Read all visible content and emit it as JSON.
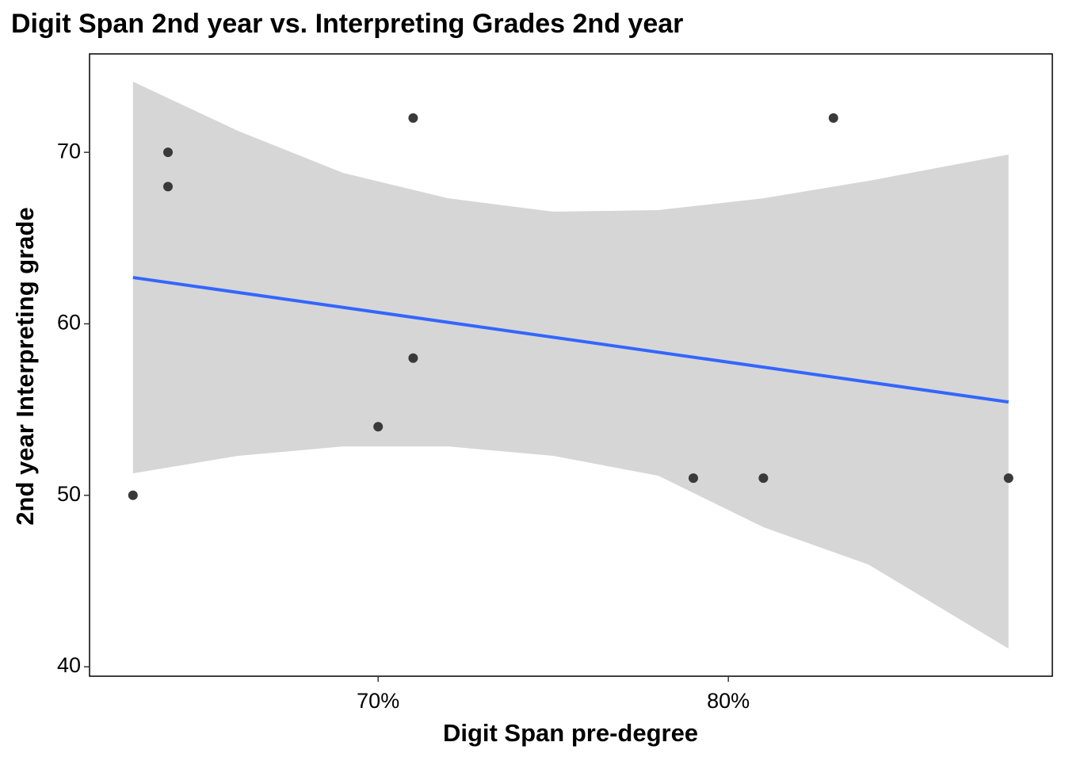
{
  "chart_data": {
    "type": "scatter",
    "title": "Digit Span 2nd year vs. Interpreting Grades 2nd year",
    "x_label": "Digit Span pre-degree",
    "y_label": "2nd year Interpreting grade",
    "points": {
      "x": [
        63,
        64,
        64,
        71,
        71,
        70,
        79,
        81,
        83,
        88
      ],
      "y": [
        50,
        70,
        68,
        72,
        58,
        54,
        51,
        51,
        72,
        51
      ],
      "color": "#3a3a3a"
    },
    "fit": {
      "x": [
        63,
        88
      ],
      "y": [
        62.7,
        55.44
      ],
      "color": "#3366ff"
    },
    "band": {
      "x": [
        63,
        66,
        69,
        72,
        75,
        78,
        81,
        84,
        88
      ],
      "lower": [
        51.28,
        52.3,
        52.85,
        52.85,
        52.3,
        51.14,
        48.14,
        45.96,
        41.06
      ],
      "upper": [
        74.12,
        71.25,
        68.8,
        67.32,
        66.54,
        66.63,
        67.32,
        68.34,
        69.87
      ],
      "color": "#d6d6d6"
    },
    "xlim": [
      61.76,
      89.25
    ],
    "ylim": [
      39.45,
      75.74
    ],
    "xticks": [
      {
        "value": 70,
        "label": "70%"
      },
      {
        "value": 80,
        "label": "80%"
      }
    ],
    "yticks": [
      40,
      50,
      60,
      70
    ],
    "grid": false
  }
}
